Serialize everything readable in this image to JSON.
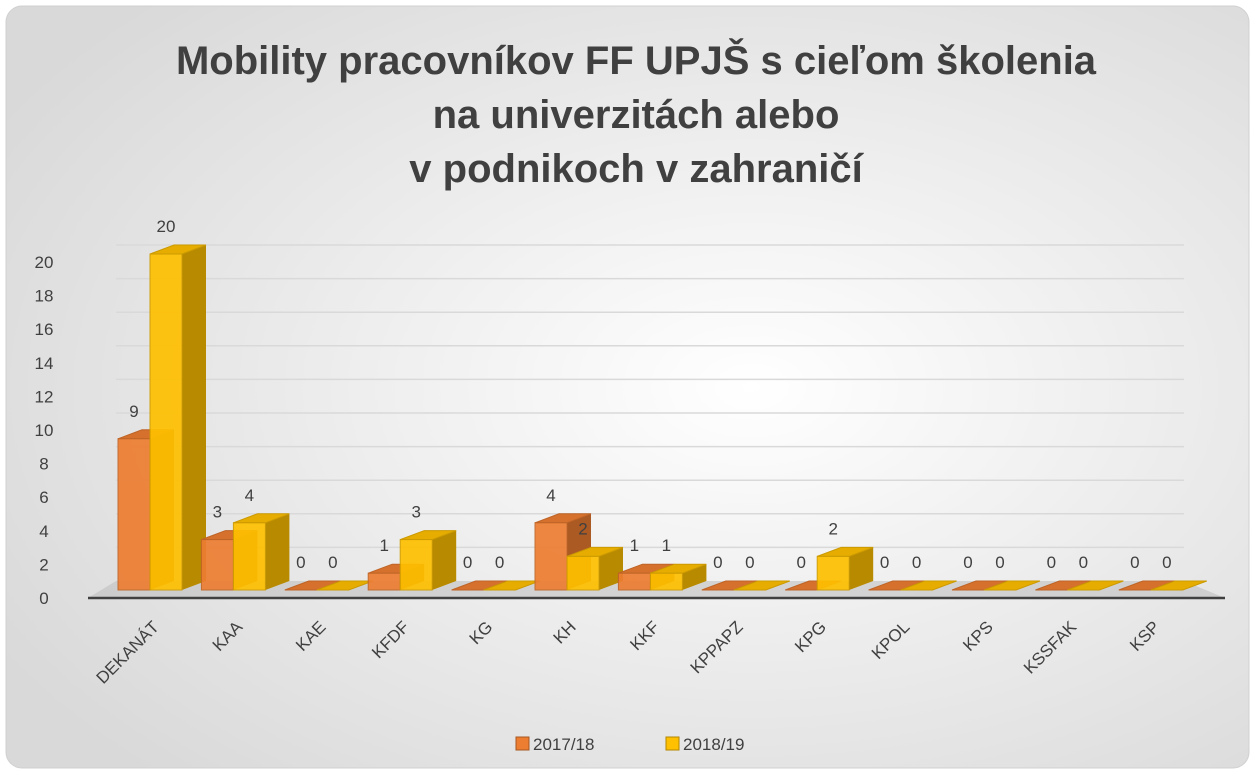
{
  "chart_data": {
    "type": "bar3d",
    "title": [
      "Mobility pracovníkov FF UPJŠ s cieľom školenia",
      "na univerzitách alebo",
      "v podnikoch v zahraničí"
    ],
    "categories": [
      "DEKANÁT",
      "KAA",
      "KAE",
      "KFDF",
      "KG",
      "KH",
      "KKF",
      "KPPAPZ",
      "KPG",
      "KPOL",
      "KPS",
      "KSSFAK",
      "KSP"
    ],
    "series": [
      {
        "name": "2017/18",
        "color": "#ed7d31",
        "values": [
          9,
          3,
          0,
          1,
          0,
          4,
          1,
          0,
          0,
          0,
          0,
          0,
          0
        ]
      },
      {
        "name": "2018/19",
        "color": "#ffc000",
        "values": [
          20,
          4,
          0,
          3,
          0,
          2,
          1,
          0,
          2,
          0,
          0,
          0,
          0
        ]
      }
    ],
    "ylim": [
      0,
      20
    ],
    "yticks": [
      0,
      2,
      4,
      6,
      8,
      10,
      12,
      14,
      16,
      18,
      20
    ],
    "grid": true,
    "legend": "bottom"
  }
}
